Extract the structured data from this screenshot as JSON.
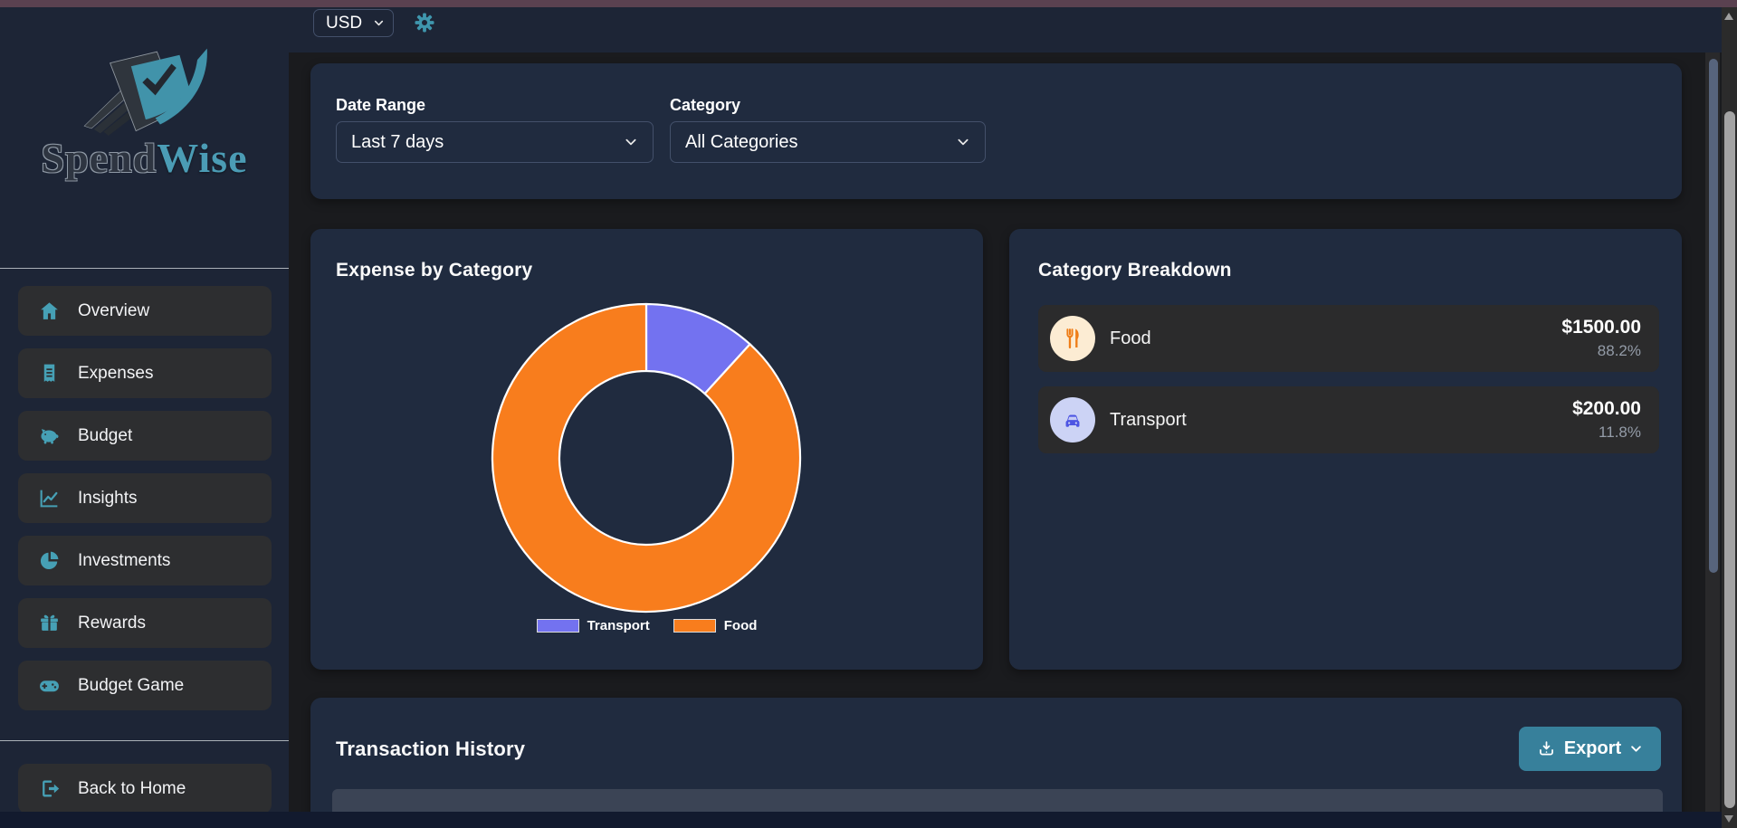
{
  "branding": {
    "name_part1": "Spend",
    "name_part2": "Wise"
  },
  "topbar": {
    "currency_value": "USD"
  },
  "sidebar": {
    "items": [
      {
        "label": "Overview",
        "icon": "home"
      },
      {
        "label": "Expenses",
        "icon": "receipt"
      },
      {
        "label": "Budget",
        "icon": "piggy-bank"
      },
      {
        "label": "Insights",
        "icon": "chart-line"
      },
      {
        "label": "Investments",
        "icon": "pie-chart"
      },
      {
        "label": "Rewards",
        "icon": "gift"
      },
      {
        "label": "Budget Game",
        "icon": "gamepad"
      }
    ],
    "footer_item": {
      "label": "Back to Home",
      "icon": "sign-out"
    }
  },
  "filters": {
    "date_range": {
      "label": "Date Range",
      "value": "Last 7 days"
    },
    "category": {
      "label": "Category",
      "value": "All Categories"
    }
  },
  "chart_card": {
    "title": "Expense by Category"
  },
  "chart_data": {
    "type": "pie",
    "variant": "donut",
    "title": "Expense by Category",
    "labels": [
      "Transport",
      "Food"
    ],
    "values": [
      200,
      1500
    ],
    "percents": [
      11.8,
      88.2
    ],
    "colors": [
      "#7372f0",
      "#f87d1d"
    ],
    "border_color": "#ffffff",
    "legend_position": "bottom"
  },
  "breakdown": {
    "title": "Category Breakdown",
    "rows": [
      {
        "label": "Food",
        "amount": "$1500.00",
        "percent": "88.2%",
        "icon": "food",
        "icon_bg": "#fcecd3",
        "icon_color": "#ef7d17"
      },
      {
        "label": "Transport",
        "amount": "$200.00",
        "percent": "11.8%",
        "icon": "car",
        "icon_bg": "#ccd3f5",
        "icon_color": "#4d55e3"
      }
    ]
  },
  "transactions": {
    "title": "Transaction History",
    "export_label": "Export"
  },
  "colors": {
    "accent_teal": "#46a0b5",
    "sidebar_bg": "#1d2536",
    "card_bg": "#202b3f",
    "content_bg": "#1a1b1e",
    "export_bg": "#37809b",
    "top_strip": "#5a4150",
    "table_header": "#3b4455"
  }
}
